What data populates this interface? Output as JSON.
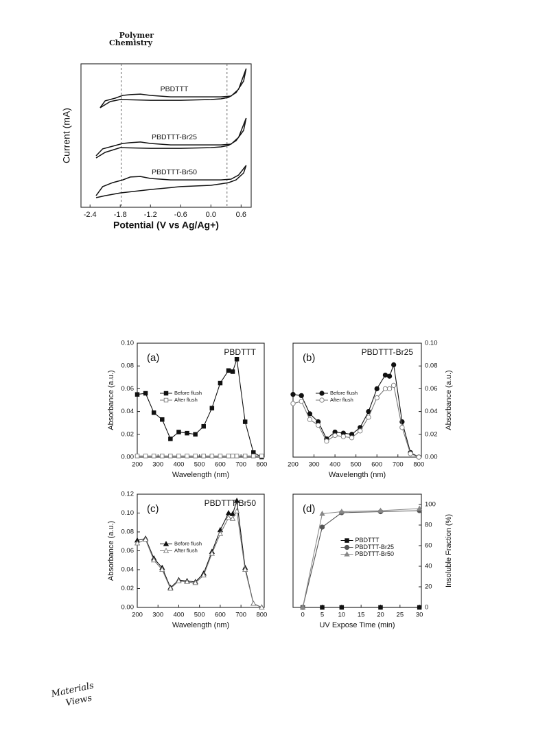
{
  "header": {
    "journal": [
      "Polymer",
      "Chemistry"
    ]
  },
  "footer": {
    "logo": [
      "Materials",
      "Views"
    ]
  },
  "chart_data": [
    {
      "type": "line",
      "xlabel": "Potential (V vs Ag/Ag+)",
      "ylabel": "Current (mA)",
      "xlim": [
        -2.58,
        0.8
      ],
      "ylim": [
        0,
        10
      ],
      "xticks": [
        -2.4,
        -1.8,
        -1.2,
        -0.6,
        {
          "value": 0,
          "label": "0.0"
        },
        0.6
      ],
      "vlines": [
        -1.78,
        0.32
      ],
      "series_labels": true,
      "series": [
        {
          "name": "PBDTTT",
          "color": "#111111",
          "x": [
            -2.2,
            -2.1,
            -1.9,
            -1.75,
            -1.6,
            -1.4,
            -1.2,
            -0.8,
            -0.2,
            0.2,
            0.4,
            0.55,
            0.7,
            0.65,
            0.5,
            0.35,
            0.2,
            0,
            -0.6,
            -1.2,
            -1.8,
            -2.0,
            -2.2
          ],
          "values": [
            6.94,
            7.42,
            7.61,
            7.8,
            7.85,
            7.89,
            7.8,
            7.7,
            7.7,
            7.7,
            7.75,
            8.23,
            9.67,
            8.8,
            7.99,
            7.66,
            7.56,
            7.51,
            7.46,
            7.46,
            7.51,
            7.37,
            6.94
          ]
        },
        {
          "name": "PBDTTT-Br25",
          "color": "#111111",
          "x": [
            -2.28,
            -2.15,
            -1.95,
            -1.75,
            -1.6,
            -1.4,
            -1.2,
            -0.8,
            -0.2,
            0.2,
            0.4,
            0.55,
            0.7,
            0.65,
            0.5,
            0.35,
            0.2,
            0,
            -0.6,
            -1.2,
            -1.8,
            -2.1,
            -2.28
          ],
          "values": [
            3.59,
            4.07,
            4.26,
            4.45,
            4.5,
            4.55,
            4.45,
            4.35,
            4.35,
            4.35,
            4.4,
            4.88,
            6.22,
            5.36,
            4.64,
            4.31,
            4.21,
            4.16,
            4.11,
            4.11,
            4.16,
            3.83,
            3.44
          ]
        },
        {
          "name": "PBDTTT-Br50",
          "color": "#111111",
          "x": [
            -2.28,
            -2.15,
            -1.95,
            -1.75,
            -1.6,
            -1.4,
            -1.2,
            -0.8,
            -0.2,
            0.2,
            0.4,
            0.55,
            0.7,
            0.65,
            0.5,
            0.35,
            0.2,
            0,
            -0.6,
            -1.2,
            -1.8,
            -2.1,
            -2.28
          ],
          "values": [
            0.81,
            1.44,
            1.72,
            1.91,
            2.11,
            2.15,
            2.01,
            1.91,
            1.91,
            1.91,
            1.96,
            2.25,
            2.92,
            2.39,
            1.91,
            1.72,
            1.63,
            1.53,
            1.44,
            1.24,
            1.0,
            0.81,
            0.67
          ]
        }
      ]
    },
    {
      "type": "line",
      "panel_label": "(a)",
      "title": "PBDTTT",
      "xlabel": "Wavelength (nm)",
      "ylabel": "Absorbance (a.u.)",
      "yaxis_position": "left",
      "legend": "center-left",
      "xlim": [
        200,
        812
      ],
      "ylim": [
        0,
        0.1
      ],
      "xticks": [
        200,
        300,
        400,
        500,
        600,
        700,
        800
      ],
      "yticks": [
        {
          "value": 0,
          "label": "0.00"
        },
        {
          "value": 0.02,
          "label": "0.02"
        },
        {
          "value": 0.04,
          "label": "0.04"
        },
        {
          "value": 0.06,
          "label": "0.06"
        },
        {
          "value": 0.08,
          "label": "0.08"
        },
        {
          "value": 0.1,
          "label": "0.10"
        }
      ],
      "x": [
        200,
        240,
        280,
        320,
        360,
        400,
        440,
        480,
        520,
        560,
        600,
        640,
        660,
        680,
        720,
        760,
        800
      ],
      "series": [
        {
          "name": "Before flush",
          "color": "#111111",
          "marker": "square",
          "open": false,
          "values": [
            0.055,
            0.056,
            0.039,
            0.033,
            0.016,
            0.022,
            0.021,
            0.02,
            0.027,
            0.043,
            0.065,
            0.076,
            0.075,
            0.086,
            0.031,
            0.004,
            0.0
          ]
        },
        {
          "name": "After flush",
          "color": "#777777",
          "marker": "square",
          "open": true,
          "values": [
            0.001,
            0.001,
            0.001,
            0.001,
            0.001,
            0.001,
            0.001,
            0.001,
            0.001,
            0.001,
            0.001,
            0.001,
            0.001,
            0.001,
            0.001,
            0.001,
            0.001
          ]
        }
      ]
    },
    {
      "type": "line",
      "panel_label": "(b)",
      "title": "PBDTTT-Br25",
      "xlabel": "Wavelength (nm)",
      "ylabel": "Absorbance (a.u.)",
      "yaxis_position": "right",
      "legend": "center-left",
      "xlim": [
        200,
        812
      ],
      "ylim": [
        0,
        0.1
      ],
      "xticks": [
        200,
        300,
        400,
        500,
        600,
        700,
        800
      ],
      "yticks": [
        {
          "value": 0,
          "label": "0.00"
        },
        {
          "value": 0.02,
          "label": "0.02"
        },
        {
          "value": 0.04,
          "label": "0.04"
        },
        {
          "value": 0.06,
          "label": "0.06"
        },
        {
          "value": 0.08,
          "label": "0.08"
        },
        {
          "value": 0.1,
          "label": "0.10"
        }
      ],
      "x": [
        200,
        240,
        280,
        320,
        360,
        400,
        440,
        480,
        520,
        560,
        600,
        640,
        660,
        680,
        720,
        760,
        800
      ],
      "series": [
        {
          "name": "Before flush",
          "color": "#111111",
          "marker": "circle",
          "open": false,
          "values": [
            0.055,
            0.054,
            0.038,
            0.031,
            0.016,
            0.022,
            0.021,
            0.02,
            0.026,
            0.04,
            0.06,
            0.072,
            0.071,
            0.081,
            0.031,
            0.004,
            0.0
          ]
        },
        {
          "name": "After flush",
          "color": "#777777",
          "marker": "circle",
          "open": true,
          "values": [
            0.047,
            0.049,
            0.033,
            0.028,
            0.014,
            0.019,
            0.018,
            0.017,
            0.023,
            0.035,
            0.052,
            0.06,
            0.06,
            0.063,
            0.026,
            0.003,
            0.0
          ]
        }
      ]
    },
    {
      "type": "line",
      "panel_label": "(c)",
      "title": "PBDTTT-Br50",
      "xlabel": "Wavelength (nm)",
      "ylabel": "Absorbance (a.u.)",
      "yaxis_position": "left",
      "legend": "center-left",
      "xlim": [
        200,
        812
      ],
      "ylim": [
        0,
        0.12
      ],
      "xticks": [
        200,
        300,
        400,
        500,
        600,
        700,
        800
      ],
      "yticks": [
        {
          "value": 0,
          "label": "0.00"
        },
        {
          "value": 0.02,
          "label": "0.02"
        },
        {
          "value": 0.04,
          "label": "0.04"
        },
        {
          "value": 0.06,
          "label": "0.06"
        },
        {
          "value": 0.08,
          "label": "0.08"
        },
        {
          "value": 0.1,
          "label": "0.10"
        },
        {
          "value": 0.12,
          "label": "0.12"
        }
      ],
      "x": [
        200,
        240,
        280,
        320,
        360,
        400,
        440,
        480,
        520,
        560,
        600,
        640,
        660,
        680,
        720,
        760,
        800
      ],
      "series": [
        {
          "name": "Before flush",
          "color": "#111111",
          "marker": "triangle",
          "open": false,
          "values": [
            0.071,
            0.073,
            0.052,
            0.042,
            0.021,
            0.029,
            0.028,
            0.027,
            0.036,
            0.059,
            0.082,
            0.1,
            0.099,
            0.113,
            0.042,
            0.004,
            0.0
          ]
        },
        {
          "name": "After flush",
          "color": "#777777",
          "marker": "triangle",
          "open": true,
          "values": [
            0.068,
            0.072,
            0.05,
            0.04,
            0.02,
            0.028,
            0.027,
            0.026,
            0.034,
            0.057,
            0.078,
            0.095,
            0.094,
            0.102,
            0.04,
            0.004,
            0.0
          ]
        }
      ]
    },
    {
      "type": "line",
      "panel_label": "(d)",
      "xlabel": "UV Expose Time (min)",
      "ylabel": "Insoluble Fraction (%)",
      "yaxis_position": "right",
      "legend": "center",
      "xlim": [
        -2.5,
        30.5
      ],
      "ylim": [
        0,
        110
      ],
      "xticks": [
        0,
        5,
        10,
        15,
        20,
        25,
        30
      ],
      "yticks": [
        0,
        20,
        40,
        60,
        80,
        100
      ],
      "x": [
        0,
        5,
        10,
        20,
        30
      ],
      "series": [
        {
          "name": "PBDTTT",
          "color": "#111111",
          "marker": "square",
          "open": false,
          "values": [
            0,
            0,
            0,
            0,
            0
          ]
        },
        {
          "name": "PBDTTT-Br25",
          "color": "#555555",
          "marker": "circle",
          "open": false,
          "values": [
            0,
            78,
            92,
            93,
            94
          ]
        },
        {
          "name": "PBDTTT-Br50",
          "color": "#888888",
          "marker": "triangle",
          "open": false,
          "values": [
            0,
            91,
            93,
            94,
            96
          ]
        }
      ]
    }
  ]
}
